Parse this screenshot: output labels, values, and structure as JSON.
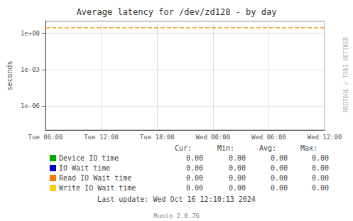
{
  "chart_data": {
    "type": "line",
    "title": "Average latency for /dev/zd128 - by day",
    "ylabel": "seconds",
    "categories": [
      "Tue 06:00",
      "Tue 12:00",
      "Tue 18:00",
      "Wed 00:00",
      "Wed 06:00",
      "Wed 12:00"
    ],
    "log": "y",
    "ylim": [
      1e-08,
      10
    ],
    "yticks": [
      {
        "value": 1,
        "label": "1e+00"
      },
      {
        "value": 0.001,
        "label": "1e-03"
      },
      {
        "value": 1e-06,
        "label": "1e-06"
      }
    ],
    "grid": true,
    "series": [
      {
        "values": [
          3.0,
          3.0,
          3.0,
          3.0,
          3.0,
          3.0
        ],
        "color": "#ff8800",
        "line_style": "dashed"
      }
    ],
    "table": {
      "headers": [
        "Cur:",
        "Min:",
        "Avg:",
        "Max:"
      ],
      "rows": [
        {
          "label": "Device IO time",
          "color": "#00aa00",
          "values": [
            "0.00",
            "0.00",
            "0.00",
            "0.00"
          ]
        },
        {
          "label": "IO Wait time",
          "color": "#0000cc",
          "values": [
            "0.00",
            "0.00",
            "0.00",
            "0.00"
          ]
        },
        {
          "label": "Read IO Wait time",
          "color": "#ff7700",
          "values": [
            "0.00",
            "0.00",
            "0.00",
            "0.00"
          ]
        },
        {
          "label": "Write IO Wait time",
          "color": "#ffcc00",
          "values": [
            "0.00",
            "0.00",
            "0.00",
            "0.00"
          ]
        }
      ]
    },
    "annotations": {
      "watermark": "RRDTOOL / TOBI OETIKER",
      "last_update": "Last update: Wed Oct 16 12:10:13 2024",
      "footer": "Munin 2.0.76"
    }
  }
}
